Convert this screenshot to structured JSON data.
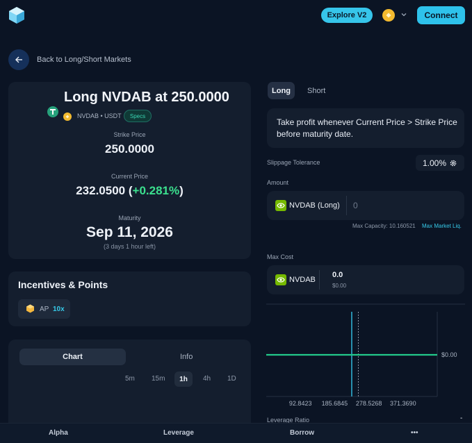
{
  "header": {
    "explore_label": "Explore V2",
    "connect_label": "Connect",
    "chain_icon": "bnb-chain-icon"
  },
  "back": {
    "label": "Back to Long/Short Markets"
  },
  "market": {
    "title": "Long NVDAB at 250.0000",
    "pair": "NVDAB • USDT",
    "specs_label": "Specs",
    "strike_label": "Strike Price",
    "strike_value": "250.0000",
    "current_label": "Current Price",
    "current_value": "232.0500",
    "current_change": "+0.281%",
    "maturity_label": "Maturity",
    "maturity_value": "Sep 11, 2026",
    "time_left": "(3 days 1 hour left)"
  },
  "incentives": {
    "title": "Incentives & Points",
    "ap_label": "AP",
    "ap_multiplier": "10x"
  },
  "chart_panel": {
    "tab_chart": "Chart",
    "tab_info": "Info",
    "timeframes": [
      "5m",
      "15m",
      "1h",
      "4h",
      "1D"
    ],
    "active_timeframe": "1h"
  },
  "trade": {
    "side_long": "Long",
    "side_short": "Short",
    "description": "Take profit whenever Current Price > Strike Price before maturity date.",
    "slippage_label": "Slippage Tolerance",
    "slippage_value": "1.00%",
    "amount_label": "Amount",
    "amount_token": "NVDAB (Long)",
    "amount_placeholder": "0",
    "max_capacity": "Max Capacity: 10.160521",
    "max_market_liq": "Max Market Liq.",
    "max_cost_label": "Max Cost",
    "cost_token": "NVDAB",
    "cost_value": "0.0",
    "cost_usd": "$0.00",
    "leverage_label": "Leverage Ratio",
    "leverage_value": "-"
  },
  "chart_data": {
    "type": "line",
    "x_ticks": [
      "92.8423",
      "185.6845",
      "278.5268",
      "371.3690"
    ],
    "y_label_right": "$0.00",
    "series": [
      {
        "x": [
          0,
          464.2
        ],
        "y": [
          0,
          0
        ]
      }
    ],
    "strike_marker": 250.0,
    "current_marker": 232.05,
    "xlim": [
      0,
      464.2
    ],
    "colors": {
      "payoff": "#22c98a",
      "current": "#33c4e8",
      "strike": "#8d97a6"
    }
  },
  "bottom_nav": {
    "items": [
      "Alpha",
      "Leverage",
      "Borrow",
      "•••"
    ]
  }
}
